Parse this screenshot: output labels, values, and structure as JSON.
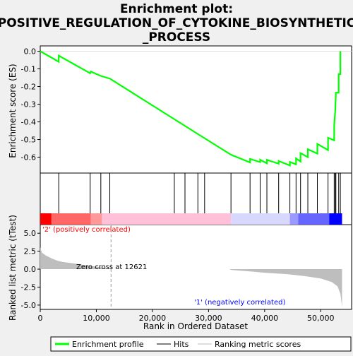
{
  "chart_data": {
    "type": "line",
    "title_line1": "Enrichment plot:",
    "title_line2": "POSITIVE_REGULATION_OF_CYTOKINE_BIOSYNTHETIC",
    "title_line3": "_PROCESS",
    "es_panel": {
      "ylabel": "Enrichment score (ES)",
      "ylim": [
        -0.69,
        0.03
      ],
      "yticks": [
        0.0,
        -0.1,
        -0.2,
        -0.3,
        -0.4,
        -0.5,
        -0.6
      ],
      "ytick_labels": [
        "0.0",
        "-0.1",
        "-0.2",
        "-0.3",
        "-0.4",
        "-0.5",
        "-0.6"
      ],
      "series_color": "#00ff00",
      "points": [
        [
          0,
          0.0
        ],
        [
          3300,
          -0.06
        ],
        [
          3300,
          -0.025
        ],
        [
          8900,
          -0.125
        ],
        [
          9000,
          -0.115
        ],
        [
          10800,
          -0.14
        ],
        [
          12400,
          -0.155
        ],
        [
          23900,
          -0.385
        ],
        [
          25800,
          -0.423
        ],
        [
          28100,
          -0.469
        ],
        [
          29300,
          -0.493
        ],
        [
          34000,
          -0.586
        ],
        [
          37400,
          -0.63
        ],
        [
          37400,
          -0.61
        ],
        [
          39200,
          -0.628
        ],
        [
          39200,
          -0.615
        ],
        [
          40400,
          -0.635
        ],
        [
          40400,
          -0.615
        ],
        [
          42500,
          -0.637
        ],
        [
          42500,
          -0.622
        ],
        [
          44500,
          -0.647
        ],
        [
          44500,
          -0.627
        ],
        [
          45600,
          -0.641
        ],
        [
          45600,
          -0.607
        ],
        [
          46400,
          -0.625
        ],
        [
          46400,
          -0.577
        ],
        [
          47700,
          -0.6
        ],
        [
          47700,
          -0.555
        ],
        [
          49400,
          -0.58
        ],
        [
          49400,
          -0.525
        ],
        [
          51300,
          -0.56
        ],
        [
          51300,
          -0.49
        ],
        [
          52400,
          -0.505
        ],
        [
          52400,
          -0.42
        ],
        [
          52600,
          -0.33
        ],
        [
          52700,
          -0.235
        ],
        [
          53200,
          -0.235
        ],
        [
          53200,
          -0.13
        ],
        [
          53500,
          -0.13
        ],
        [
          53500,
          0.0
        ]
      ]
    },
    "hits": [
      3300,
      8900,
      10800,
      12400,
      23900,
      25800,
      28100,
      29300,
      34000,
      37400,
      39200,
      40400,
      42500,
      44500,
      45600,
      46400,
      47700,
      49400,
      51300,
      52400,
      52600,
      52700,
      53200,
      53500
    ],
    "metric_panel": {
      "ylabel": "Ranked list metric (tTest)",
      "ylim": [
        -5.6,
        6.2
      ],
      "yticks": [
        5.0,
        2.5,
        0.0,
        -2.5,
        -5.0
      ],
      "ytick_labels": [
        "5.0",
        "2.5",
        "0.0",
        "-2.5",
        "-5.0"
      ],
      "zero_cross_rank": 12621,
      "zero_cross_label": "Zero cross at 12621",
      "positive_label": "'2' (positively correlated)",
      "negative_label": "'1' (negatively correlated)",
      "profile": [
        [
          0,
          3.0
        ],
        [
          300,
          2.3
        ],
        [
          1000,
          1.9
        ],
        [
          2000,
          1.5
        ],
        [
          3000,
          1.2
        ],
        [
          4000,
          1.0
        ],
        [
          6000,
          0.8
        ],
        [
          8000,
          0.55
        ],
        [
          10000,
          0.35
        ],
        [
          11500,
          0.15
        ],
        [
          12621,
          0.0
        ],
        [
          20000,
          0.0
        ],
        [
          33800,
          0.0
        ],
        [
          34000,
          -0.1
        ],
        [
          38000,
          -0.35
        ],
        [
          40000,
          -0.5
        ],
        [
          44000,
          -0.7
        ],
        [
          47000,
          -0.95
        ],
        [
          50000,
          -1.3
        ],
        [
          52000,
          -1.8
        ],
        [
          53000,
          -2.4
        ],
        [
          53500,
          -3.4
        ],
        [
          53700,
          -4.6
        ],
        [
          53800,
          -5.3
        ]
      ]
    },
    "x_axis": {
      "xlabel": "Rank in Ordered Dataset",
      "xlim": [
        0,
        55500
      ],
      "xticks": [
        0,
        10000,
        20000,
        30000,
        40000,
        50000
      ],
      "xtick_labels": [
        "0",
        "10,000",
        "20,000",
        "30,000",
        "40,000",
        "50,000"
      ]
    },
    "legend": {
      "placement": "bottom",
      "items": [
        {
          "label": "Enrichment profile",
          "color": "#00ff00"
        },
        {
          "label": "Hits",
          "color": "#000000"
        },
        {
          "label": "Ranking metric scores",
          "color": "#bebebe"
        }
      ]
    },
    "colors": {
      "background": "#f0f0f0",
      "panel": "#ffffff",
      "positive_strong": "#ff0000",
      "positive_weak": "#ffc0d8",
      "negative_weak": "#d8d8ff",
      "negative_strong": "#0000ff",
      "metric_fill": "#bebebe",
      "annotation_red": "#ff0000",
      "annotation_blue": "#0000ff"
    }
  }
}
